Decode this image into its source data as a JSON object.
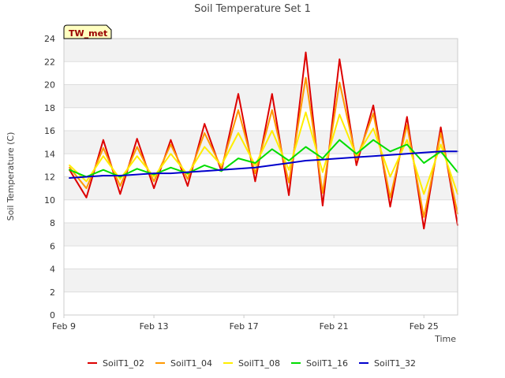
{
  "chart_data": {
    "type": "line",
    "title": "Soil Temperature Set 1",
    "xlabel": "Time",
    "ylabel": "Soil Temperature (C)",
    "badge": "TW_met",
    "x_ticks": [
      "Feb 9",
      "Feb 13",
      "Feb 17",
      "Feb 21",
      "Feb 25"
    ],
    "y_ticks": [
      0,
      2,
      4,
      6,
      8,
      10,
      12,
      14,
      16,
      18,
      20,
      22,
      24
    ],
    "xlim": [
      0,
      17.5
    ],
    "ylim": [
      0,
      24
    ],
    "grid": true,
    "legend": "bottom",
    "series": [
      {
        "name": "SoilT1_02",
        "color": "#dd0000",
        "x": [
          0.25,
          1.0,
          1.75,
          2.5,
          3.25,
          4.0,
          4.75,
          5.5,
          6.25,
          7.0,
          7.75,
          8.5,
          9.25,
          10.0,
          10.75,
          11.5,
          12.25,
          13.0,
          13.75,
          14.5,
          15.25,
          16.0,
          16.75,
          17.5
        ],
        "y": [
          12.6,
          10.2,
          15.2,
          10.5,
          15.3,
          11.0,
          15.2,
          11.2,
          16.6,
          12.5,
          19.2,
          11.6,
          19.2,
          10.4,
          22.8,
          9.5,
          22.2,
          13.0,
          18.2,
          9.4,
          17.2,
          7.5,
          16.3,
          7.8
        ]
      },
      {
        "name": "SoilT1_04",
        "color": "#ff9900",
        "x": [
          0.25,
          1.0,
          1.75,
          2.5,
          3.25,
          4.0,
          4.75,
          5.5,
          6.25,
          7.0,
          7.75,
          8.5,
          9.25,
          10.0,
          10.75,
          11.5,
          12.25,
          13.0,
          13.75,
          14.5,
          15.25,
          16.0,
          16.75,
          17.5
        ],
        "y": [
          12.8,
          11.0,
          14.5,
          11.2,
          14.6,
          11.6,
          14.8,
          11.8,
          15.8,
          12.8,
          17.8,
          12.3,
          17.8,
          11.5,
          20.6,
          10.6,
          20.2,
          13.5,
          17.5,
          10.2,
          16.5,
          8.5,
          15.8,
          8.8
        ]
      },
      {
        "name": "SoilT1_08",
        "color": "#ffee00",
        "x": [
          0.25,
          1.0,
          1.75,
          2.5,
          3.25,
          4.0,
          4.75,
          5.5,
          6.25,
          7.0,
          7.75,
          8.5,
          9.25,
          10.0,
          10.75,
          11.5,
          12.25,
          13.0,
          13.75,
          14.5,
          15.25,
          16.0,
          16.75,
          17.5
        ],
        "y": [
          13.0,
          11.6,
          13.8,
          11.8,
          13.8,
          12.0,
          14.0,
          12.2,
          14.6,
          13.0,
          15.8,
          13.0,
          16.0,
          12.6,
          17.6,
          12.4,
          17.4,
          13.8,
          16.2,
          12.0,
          15.2,
          10.5,
          14.8,
          10.5
        ]
      },
      {
        "name": "SoilT1_16",
        "color": "#00dd00",
        "x": [
          0.25,
          1.0,
          1.75,
          2.5,
          3.25,
          4.0,
          4.75,
          5.5,
          6.25,
          7.0,
          7.75,
          8.5,
          9.25,
          10.0,
          10.75,
          11.5,
          12.25,
          13.0,
          13.75,
          14.5,
          15.25,
          16.0,
          16.75,
          17.5
        ],
        "y": [
          12.6,
          12.0,
          12.6,
          12.0,
          12.7,
          12.2,
          12.8,
          12.3,
          13.0,
          12.5,
          13.6,
          13.2,
          14.4,
          13.4,
          14.6,
          13.6,
          15.2,
          14.0,
          15.2,
          14.2,
          14.8,
          13.2,
          14.2,
          12.4
        ]
      },
      {
        "name": "SoilT1_32",
        "color": "#0000cc",
        "x": [
          0.25,
          1.0,
          1.75,
          2.5,
          3.25,
          4.0,
          4.75,
          5.5,
          6.25,
          7.0,
          7.75,
          8.5,
          9.25,
          10.0,
          10.75,
          11.5,
          12.25,
          13.0,
          13.75,
          14.5,
          15.25,
          16.0,
          16.75,
          17.5
        ],
        "y": [
          11.9,
          12.0,
          12.1,
          12.1,
          12.2,
          12.3,
          12.3,
          12.4,
          12.5,
          12.6,
          12.7,
          12.8,
          13.0,
          13.2,
          13.4,
          13.5,
          13.6,
          13.7,
          13.8,
          13.9,
          14.0,
          14.1,
          14.2,
          14.2
        ]
      }
    ]
  }
}
